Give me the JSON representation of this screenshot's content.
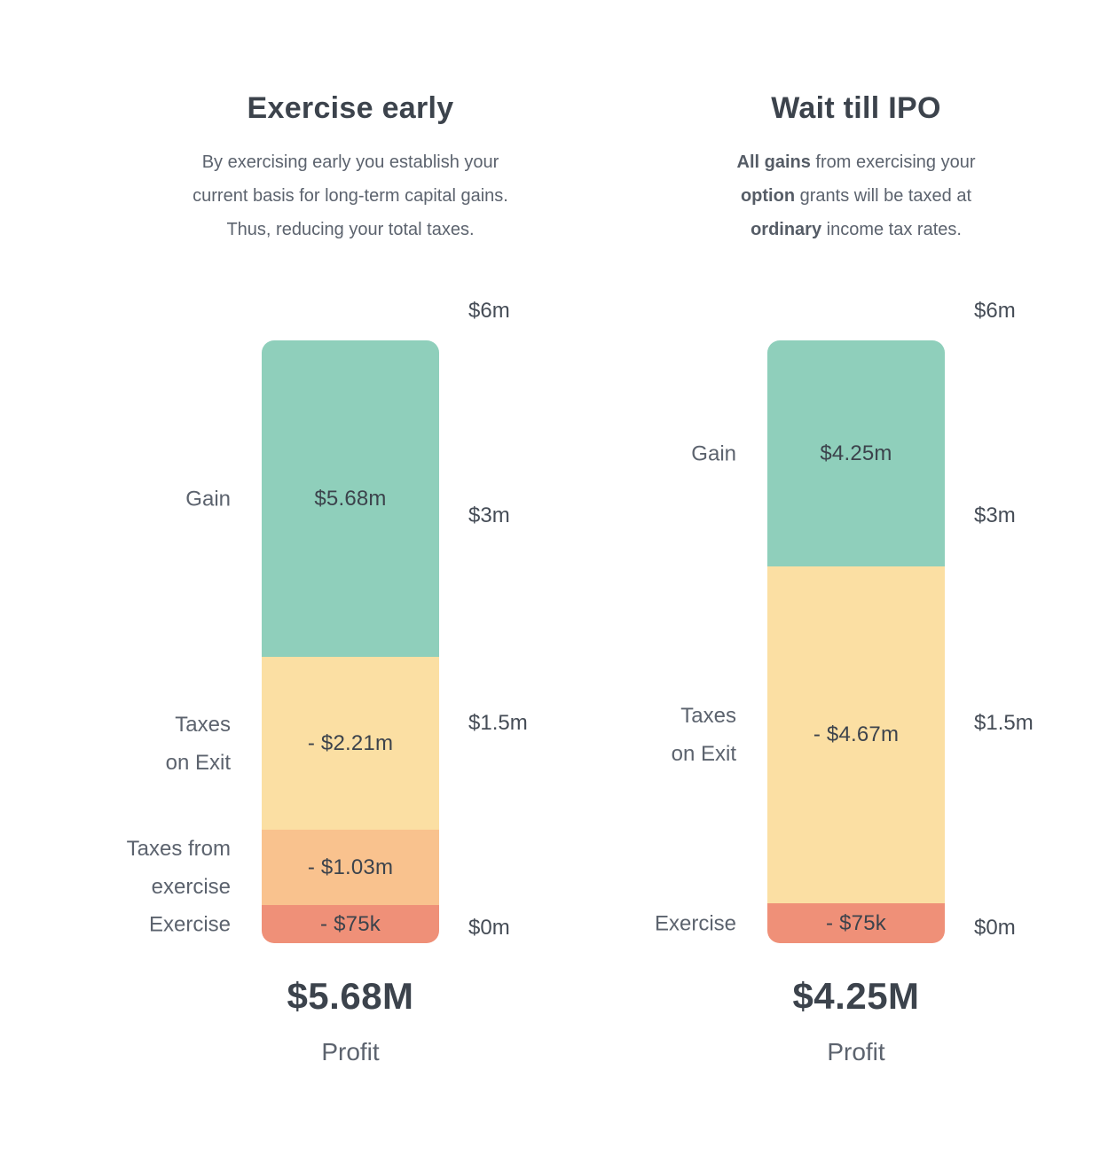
{
  "page": {
    "background": "#ffffff",
    "text_dark": "#3c434c",
    "text_gray": "#5c636e"
  },
  "chart_data": [
    {
      "type": "bar",
      "variant": "stacked-waterfall",
      "title": "Exercise early",
      "subtitle_lines": [
        [
          {
            "text": "By exercising early you establish your",
            "bold": false
          }
        ],
        [
          {
            "text": "current basis for long-term capital gains.",
            "bold": false
          }
        ],
        [
          {
            "text": "Thus, reducing your total taxes.",
            "bold": false
          }
        ]
      ],
      "segments": [
        {
          "name": "gain",
          "label": "Gain",
          "value": "$5.68m",
          "value_m": 5.68,
          "color": "#8FCFBB",
          "height_pct": 52.5
        },
        {
          "name": "taxes-on-exit",
          "label": "Taxes\non Exit",
          "value": "- $2.21m",
          "value_m": -2.21,
          "color": "#FBDFA3",
          "height_pct": 28.7
        },
        {
          "name": "taxes-from-exercise",
          "label": "Taxes from\nexercise",
          "value": "- $1.03m",
          "value_m": -1.03,
          "color": "#F9C28E",
          "height_pct": 12.5
        },
        {
          "name": "exercise",
          "label": "Exercise",
          "value": "- $75k",
          "value_m": -0.075,
          "color": "#EF9078",
          "height_pct": 6.3
        }
      ],
      "axis_ticks": [
        {
          "label": "$6m",
          "pos": -0.049
        },
        {
          "label": "$3m",
          "pos": 0.291
        },
        {
          "label": "$1.5m",
          "pos": 0.635
        },
        {
          "label": "$0m",
          "pos": 0.975
        }
      ],
      "axis_range": {
        "min_label": "$0m",
        "max_label": "$6m",
        "scale": "non-linear (0, 1.5, 3, 6 equally spaced)"
      },
      "legend_position": "left-of-bar",
      "grid": false,
      "total": "$5.68M",
      "total_label": "Profit"
    },
    {
      "type": "bar",
      "variant": "stacked-waterfall",
      "title": "Wait till IPO",
      "subtitle_lines": [
        [
          {
            "text": "All gains",
            "bold": true
          },
          {
            "text": " from exercising your",
            "bold": false
          }
        ],
        [
          {
            "text": "option",
            "bold": true
          },
          {
            "text": " grants will be taxed at",
            "bold": false
          }
        ],
        [
          {
            "text": "ordinary",
            "bold": true
          },
          {
            "text": " income tax rates.",
            "bold": false
          }
        ]
      ],
      "segments": [
        {
          "name": "gain",
          "label": "Gain",
          "value": "$4.25m",
          "value_m": 4.25,
          "color": "#8FCFBB",
          "height_pct": 37.5
        },
        {
          "name": "taxes-on-exit",
          "label": "Taxes\non Exit",
          "value": "- $4.67m",
          "value_m": -4.67,
          "color": "#FBDFA3",
          "height_pct": 55.9
        },
        {
          "name": "exercise",
          "label": "Exercise",
          "value": "- $75k",
          "value_m": -0.075,
          "color": "#EF9078",
          "height_pct": 6.6
        }
      ],
      "axis_ticks": [
        {
          "label": "$6m",
          "pos": -0.049
        },
        {
          "label": "$3m",
          "pos": 0.291
        },
        {
          "label": "$1.5m",
          "pos": 0.635
        },
        {
          "label": "$0m",
          "pos": 0.975
        }
      ],
      "axis_range": {
        "min_label": "$0m",
        "max_label": "$6m",
        "scale": "non-linear (0, 1.5, 3, 6 equally spaced)"
      },
      "legend_position": "left-of-bar",
      "grid": false,
      "total": "$4.25M",
      "total_label": "Profit"
    }
  ]
}
